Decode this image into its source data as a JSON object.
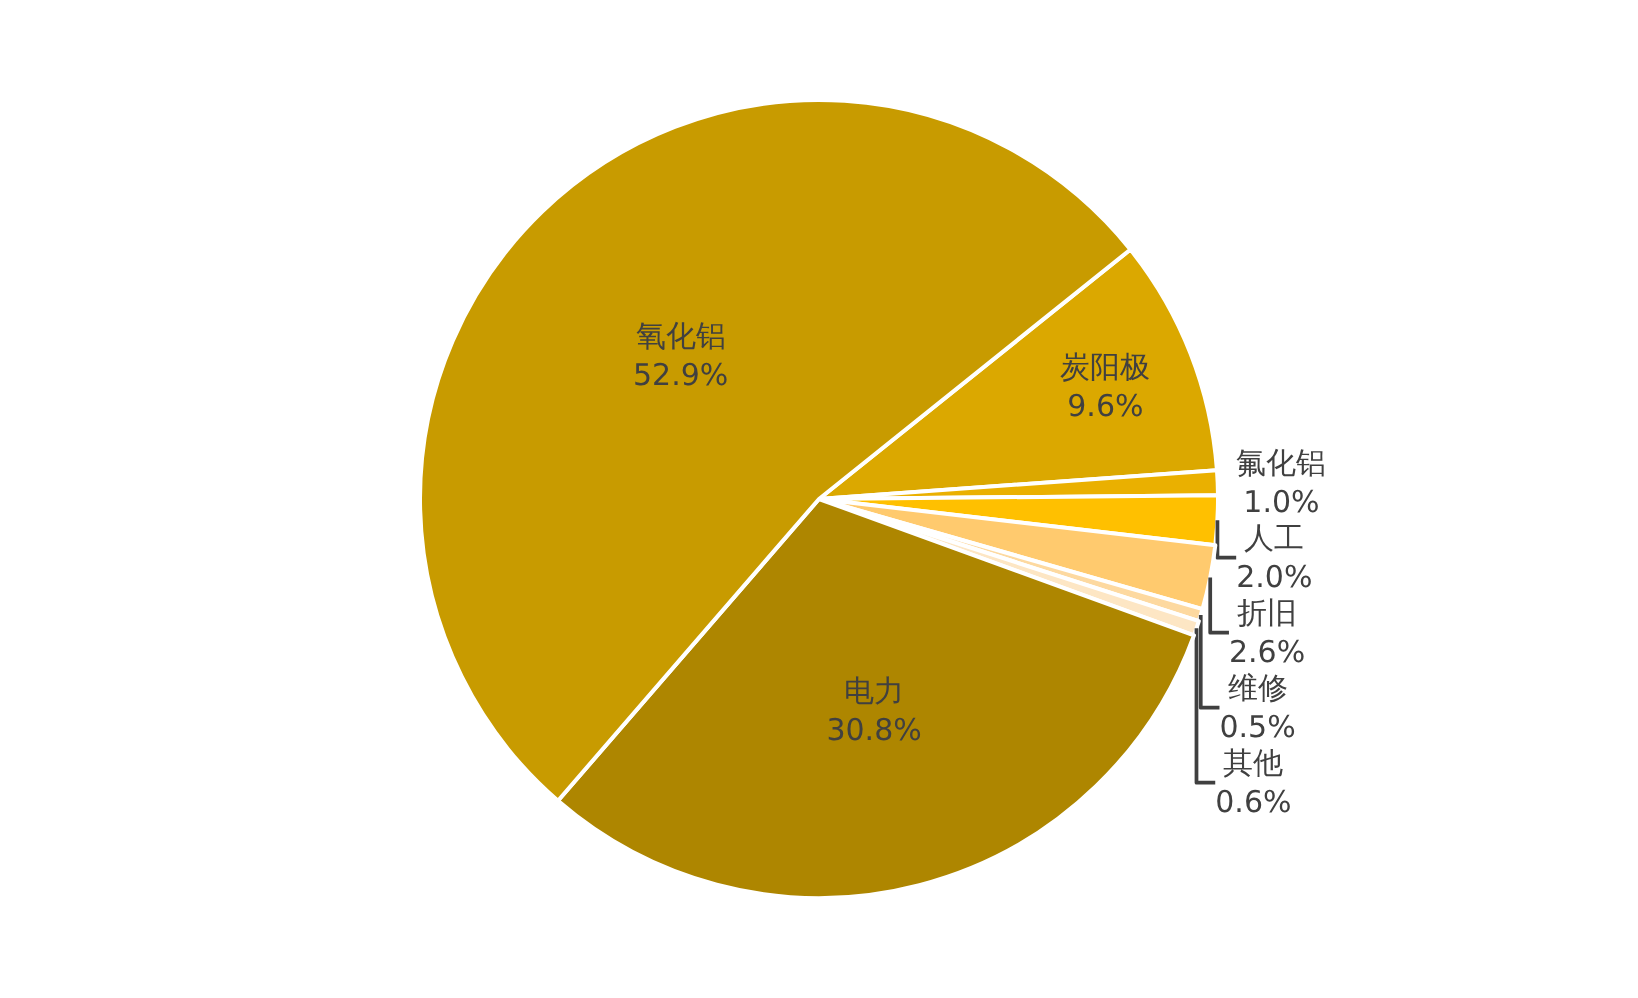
{
  "chart_data": {
    "type": "pie",
    "categories": [
      "炭阳极",
      "氟化铝",
      "人工",
      "折旧",
      "维修",
      "其他",
      "电力",
      "氧化铝"
    ],
    "values": [
      9.6,
      1.0,
      2.0,
      2.6,
      0.5,
      0.6,
      30.8,
      52.9
    ],
    "colors": [
      "#dba800",
      "#eab000",
      "#ffc000",
      "#ffca6e",
      "#fdd9a0",
      "#fde6c4",
      "#ae8600",
      "#c89b00"
    ],
    "value_labels": [
      "9.6%",
      "1.0%",
      "2.0%",
      "2.6%",
      "0.5%",
      "0.6%",
      "30.8%",
      "52.9%"
    ],
    "legend": false
  }
}
